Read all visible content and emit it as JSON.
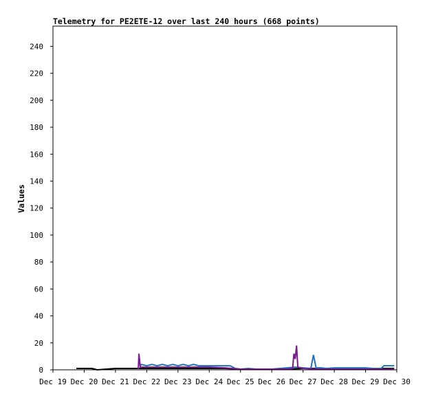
{
  "chart_data": {
    "type": "line",
    "title": "Telemetry for PE2ETE-12 over last 240 hours (668 points)",
    "xlabel": "",
    "ylabel": "Values",
    "ylim": [
      0,
      255
    ],
    "yticks": [
      0,
      20,
      40,
      60,
      80,
      100,
      120,
      140,
      160,
      180,
      200,
      220,
      240
    ],
    "xlim": [
      "2023-12-19 00:00",
      "2023-12-30 00:00"
    ],
    "xticks": [
      "Dec 19",
      "Dec 20",
      "Dec 21",
      "Dec 22",
      "Dec 23",
      "Dec 24",
      "Dec 25",
      "Dec 26",
      "Dec 27",
      "Dec 28",
      "Dec 29",
      "Dec 30"
    ],
    "grid": false,
    "series": [
      {
        "color": "#000000",
        "x": [
          "2023-12-19 18:00",
          "2023-12-20 06:00",
          "2023-12-20 10:00",
          "2023-12-21 00:00",
          "2023-12-21 12:00",
          "2023-12-21 18:00",
          "2023-12-22 06:00",
          "2023-12-23 00:00",
          "2023-12-23 12:00",
          "2023-12-24 00:00",
          "2023-12-24 12:00",
          "2023-12-25 00:00",
          "2023-12-25 12:00",
          "2023-12-26 00:00",
          "2023-12-26 12:00",
          "2023-12-27 00:00",
          "2023-12-27 12:00",
          "2023-12-28 00:00",
          "2023-12-28 12:00",
          "2023-12-29 00:00",
          "2023-12-29 12:00",
          "2023-12-29 22:00"
        ],
        "y": [
          1,
          1,
          0,
          1,
          1,
          1,
          1,
          1,
          1,
          1,
          1,
          0.5,
          0.5,
          0.5,
          0.5,
          1,
          1,
          1,
          1,
          1,
          1,
          1
        ]
      },
      {
        "color": "#1f6fc5",
        "x": [
          "2023-12-21 18:00",
          "2023-12-21 19:00",
          "2023-12-21 20:00",
          "2023-12-22 00:00",
          "2023-12-22 04:00",
          "2023-12-22 08:00",
          "2023-12-22 12:00",
          "2023-12-22 16:00",
          "2023-12-22 20:00",
          "2023-12-23 00:00",
          "2023-12-23 04:00",
          "2023-12-23 08:00",
          "2023-12-23 12:00",
          "2023-12-23 16:00",
          "2023-12-23 20:00",
          "2023-12-24 00:00",
          "2023-12-24 04:00",
          "2023-12-24 08:00",
          "2023-12-24 12:00",
          "2023-12-24 16:00",
          "2023-12-24 20:00",
          "2023-12-25 00:00",
          "2023-12-25 06:00",
          "2023-12-25 12:00",
          "2023-12-25 18:00",
          "2023-12-26 00:00",
          "2023-12-26 06:00",
          "2023-12-26 12:00",
          "2023-12-26 18:00",
          "2023-12-27 00:00",
          "2023-12-27 06:00",
          "2023-12-27 08:00",
          "2023-12-27 10:00",
          "2023-12-27 14:00",
          "2023-12-27 18:00",
          "2023-12-28 00:00",
          "2023-12-28 06:00",
          "2023-12-28 12:00",
          "2023-12-28 18:00",
          "2023-12-29 00:00",
          "2023-12-29 06:00",
          "2023-12-29 12:00",
          "2023-12-29 14:00",
          "2023-12-29 18:00",
          "2023-12-29 22:00"
        ],
        "y": [
          11,
          3,
          4,
          3,
          4,
          3,
          4,
          3,
          4,
          3,
          4,
          3,
          4,
          3,
          3,
          3,
          3,
          3,
          3,
          3,
          1,
          0.5,
          1,
          0.5,
          0.5,
          0.5,
          1,
          1.5,
          2,
          1.5,
          1,
          11,
          1.5,
          1.5,
          1,
          1.5,
          1.5,
          1.5,
          1.5,
          1.5,
          1,
          1,
          3,
          3,
          3
        ]
      },
      {
        "color": "#7a1a8c",
        "x": [
          "2023-12-21 17:30",
          "2023-12-21 18:00",
          "2023-12-21 19:00",
          "2023-12-22 00:00",
          "2023-12-22 12:00",
          "2023-12-23 00:00",
          "2023-12-23 12:00",
          "2023-12-24 00:00",
          "2023-12-24 12:00",
          "2023-12-25 00:00",
          "2023-12-25 12:00",
          "2023-12-26 00:00",
          "2023-12-26 12:00",
          "2023-12-26 16:00",
          "2023-12-26 17:00",
          "2023-12-26 18:00",
          "2023-12-26 19:00",
          "2023-12-26 20:00",
          "2023-12-27 00:00",
          "2023-12-27 12:00",
          "2023-12-28 00:00",
          "2023-12-28 12:00",
          "2023-12-29 00:00",
          "2023-12-29 12:00",
          "2023-12-29 22:00"
        ],
        "y": [
          0.5,
          12,
          2,
          2,
          2,
          2,
          2,
          2,
          1.5,
          0.5,
          0.5,
          0.5,
          0.5,
          1,
          12,
          8,
          18,
          2,
          1,
          0.5,
          0.5,
          0.5,
          0.5,
          0.5,
          0.5
        ]
      }
    ]
  }
}
